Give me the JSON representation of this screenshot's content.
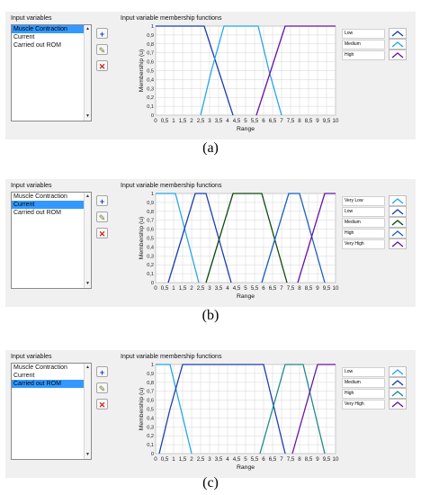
{
  "colors": {
    "very_low": "#25a7e6",
    "low": "#1c3fae",
    "medium": "#25a7e6",
    "medium_b": "#0f4a0f",
    "high": "#1a5fc0",
    "very_high": "#6a12a8",
    "list_selected": "#3399ff",
    "panel_bg": "#f0f0f0"
  },
  "icons": {
    "add": "plus-icon",
    "edit": "pencil-icon",
    "delete": "x-icon"
  },
  "panels": [
    {
      "input_label": "Input variables",
      "plot_title": "Input variable membership functions",
      "ylabel": "Membership (u)",
      "xlabel": "Range",
      "caption": "(a)",
      "list_items": [
        "Muscle Contraction",
        "Current",
        "Carried out ROM"
      ],
      "selected_index": 0,
      "legend": [
        "Low",
        "Medium",
        "High"
      ]
    },
    {
      "input_label": "Input variables",
      "plot_title": "Input variable membership functions",
      "ylabel": "Membership (u)",
      "xlabel": "Range",
      "caption": "(b)",
      "list_items": [
        "Muscle Contraction",
        "Current",
        "Carried out ROM"
      ],
      "selected_index": 1,
      "legend": [
        "Very Low",
        "Low",
        "Medium",
        "High",
        "Very High"
      ]
    },
    {
      "input_label": "Input variables",
      "plot_title": "Input variable membership functions",
      "ylabel": "Membership (u)",
      "xlabel": "Range",
      "caption": "(c)",
      "list_items": [
        "Muscle Contraction",
        "Current",
        "Carried out ROM"
      ],
      "selected_index": 2,
      "legend": [
        "Low",
        "Medium",
        "High",
        "Very High"
      ]
    }
  ],
  "chart_data": [
    {
      "type": "line",
      "xlabel": "Range",
      "ylabel": "Membership (u)",
      "xlim": [
        0,
        10
      ],
      "ylim": [
        0,
        1
      ],
      "x_ticks": [
        "0",
        "0,5",
        "1",
        "1,5",
        "2",
        "2,5",
        "3",
        "3,5",
        "4",
        "4,5",
        "5",
        "5,5",
        "6",
        "6,5",
        "7",
        "7,5",
        "8",
        "8,5",
        "9",
        "9,5",
        "10"
      ],
      "y_ticks": [
        "0",
        "0,1",
        "0,2",
        "0,3",
        "0,4",
        "0,5",
        "0,6",
        "0,7",
        "0,8",
        "0,9",
        "1"
      ],
      "grid": true,
      "series": [
        {
          "name": "Low",
          "color": "#1c3fae",
          "points": [
            [
              0,
              1
            ],
            [
              2.7,
              1
            ],
            [
              3.5,
              0.5
            ],
            [
              4.3,
              0
            ]
          ]
        },
        {
          "name": "Medium",
          "color": "#25a7e6",
          "points": [
            [
              2.5,
              0
            ],
            [
              3.1,
              0.5
            ],
            [
              3.8,
              1
            ],
            [
              5.7,
              1
            ],
            [
              6.3,
              0.5
            ],
            [
              7,
              0
            ]
          ]
        },
        {
          "name": "High",
          "color": "#6a12a8",
          "points": [
            [
              5.6,
              0
            ],
            [
              6.4,
              0.5
            ],
            [
              7.2,
              1
            ],
            [
              10,
              1
            ]
          ]
        }
      ]
    },
    {
      "type": "line",
      "xlabel": "Range",
      "ylabel": "Membership (u)",
      "xlim": [
        0,
        10
      ],
      "ylim": [
        0,
        1
      ],
      "x_ticks": [
        "0",
        "0,5",
        "1",
        "1,5",
        "2",
        "2,5",
        "3",
        "3,5",
        "4",
        "4,5",
        "5",
        "5,5",
        "6",
        "6,5",
        "7",
        "7,5",
        "8",
        "8,5",
        "9",
        "9,5",
        "10"
      ],
      "y_ticks": [
        "0",
        "0,1",
        "0,2",
        "0,3",
        "0,4",
        "0,5",
        "0,6",
        "0,7",
        "0,8",
        "0,9",
        "1"
      ],
      "grid": true,
      "series": [
        {
          "name": "Very Low",
          "color": "#25a7e6",
          "points": [
            [
              0,
              1
            ],
            [
              1.1,
              1
            ],
            [
              1.75,
              0.5
            ],
            [
              2.4,
              0
            ]
          ]
        },
        {
          "name": "Low",
          "color": "#1c3fae",
          "points": [
            [
              0.7,
              0
            ],
            [
              1.45,
              0.5
            ],
            [
              2.2,
              1
            ],
            [
              2.8,
              1
            ],
            [
              3.5,
              0.5
            ],
            [
              4.2,
              0
            ]
          ]
        },
        {
          "name": "Medium",
          "color": "#0f4a0f",
          "points": [
            [
              2.8,
              0
            ],
            [
              3.55,
              0.5
            ],
            [
              4.3,
              1
            ],
            [
              5.9,
              1
            ],
            [
              6.6,
              0.5
            ],
            [
              7.3,
              0
            ]
          ]
        },
        {
          "name": "High",
          "color": "#1a5fc0",
          "points": [
            [
              5.9,
              0
            ],
            [
              6.65,
              0.5
            ],
            [
              7.4,
              1
            ],
            [
              8,
              1
            ],
            [
              8.7,
              0.5
            ],
            [
              9.4,
              0
            ]
          ]
        },
        {
          "name": "Very High",
          "color": "#6a12a8",
          "points": [
            [
              7.9,
              0
            ],
            [
              8.65,
              0.5
            ],
            [
              9.4,
              1
            ],
            [
              10,
              1
            ]
          ]
        }
      ]
    },
    {
      "type": "line",
      "xlabel": "Range",
      "ylabel": "Membership (u)",
      "xlim": [
        0,
        10
      ],
      "ylim": [
        0,
        1
      ],
      "x_ticks": [
        "0",
        "0,5",
        "1",
        "1,5",
        "2",
        "2,5",
        "3",
        "3,5",
        "4",
        "4,5",
        "5",
        "5,5",
        "6",
        "6,5",
        "7",
        "7,5",
        "8",
        "8,5",
        "9",
        "9,5",
        "10"
      ],
      "y_ticks": [
        "0",
        "0,1",
        "0,2",
        "0,3",
        "0,4",
        "0,5",
        "0,6",
        "0,7",
        "0,8",
        "0,9",
        "1"
      ],
      "grid": true,
      "series": [
        {
          "name": "Low",
          "color": "#25a7e6",
          "points": [
            [
              0,
              1
            ],
            [
              0.8,
              1
            ],
            [
              1.4,
              0.5
            ],
            [
              2,
              0
            ]
          ]
        },
        {
          "name": "Medium",
          "color": "#1c3fae",
          "points": [
            [
              0.2,
              0
            ],
            [
              0.8,
              0.5
            ],
            [
              1.5,
              1
            ],
            [
              6,
              1
            ],
            [
              6.6,
              0.5
            ],
            [
              7.2,
              0
            ]
          ]
        },
        {
          "name": "High",
          "color": "#1f8a8a",
          "points": [
            [
              5.8,
              0
            ],
            [
              6.5,
              0.5
            ],
            [
              7.2,
              1
            ],
            [
              8.2,
              1
            ],
            [
              8.8,
              0.5
            ],
            [
              9.4,
              0
            ]
          ]
        },
        {
          "name": "Very High",
          "color": "#6a12a8",
          "points": [
            [
              7.6,
              0
            ],
            [
              8.3,
              0.5
            ],
            [
              9,
              1
            ],
            [
              10,
              1
            ]
          ]
        }
      ]
    }
  ]
}
